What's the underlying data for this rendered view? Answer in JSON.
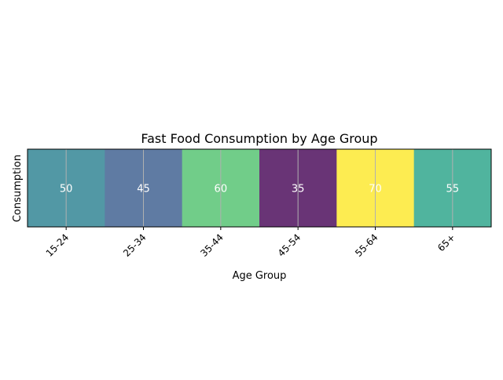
{
  "chart_data": {
    "type": "heatmap",
    "title": "Fast Food Consumption by Age Group",
    "xlabel": "Age Group",
    "ylabel": "Consumption",
    "categories": [
      "15-24",
      "25-34",
      "35-44",
      "45-54",
      "55-64",
      "65+"
    ],
    "values": [
      50,
      45,
      60,
      35,
      70,
      55
    ],
    "colormap": "viridis",
    "vmin": 35,
    "vmax": 70,
    "cell_alpha": 0.8,
    "grid": true,
    "annotations": true,
    "annotation_color": "#ffffff",
    "tick_rotation": 45
  }
}
